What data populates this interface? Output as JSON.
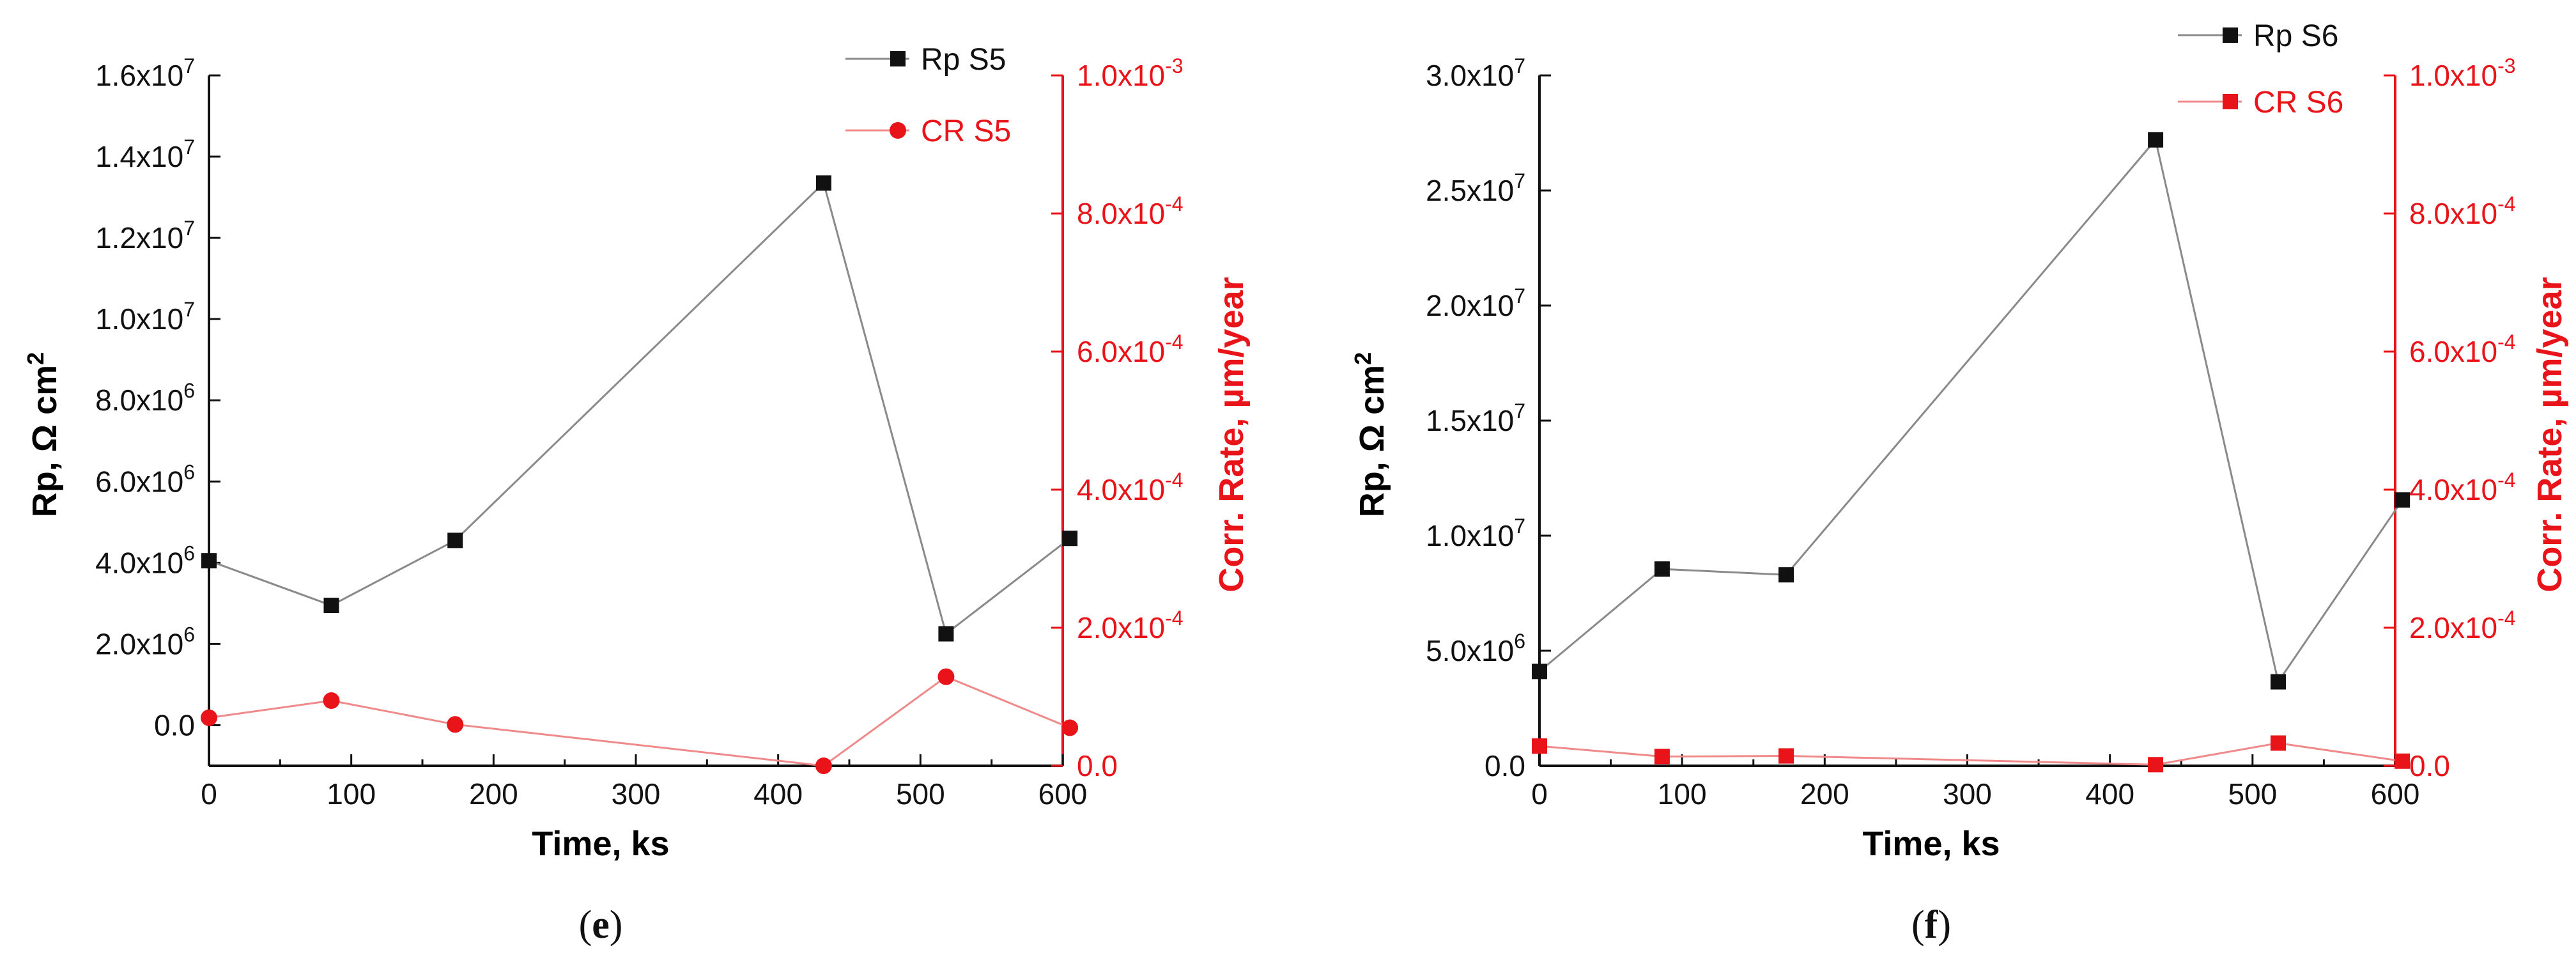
{
  "chart_data": [
    {
      "type": "line",
      "panel": "(e)",
      "panel_letter": "e",
      "xlabel": "Time, ks",
      "ylabel": "Rp, Ω cm",
      "ylabel_sup": "2",
      "y2label": "Corr. Rate, µm/year",
      "xlim": [
        0,
        600
      ],
      "xticks": [
        "0",
        "100",
        "200",
        "300",
        "400",
        "500",
        "600"
      ],
      "ylim": [
        -1000000,
        16000000
      ],
      "yticks": [
        {
          "v": 0,
          "m": "0.0",
          "e": ""
        },
        {
          "v": 2000000,
          "m": "2.0x10",
          "e": "6"
        },
        {
          "v": 4000000,
          "m": "4.0x10",
          "e": "6"
        },
        {
          "v": 6000000,
          "m": "6.0x10",
          "e": "6"
        },
        {
          "v": 8000000,
          "m": "8.0x10",
          "e": "6"
        },
        {
          "v": 10000000,
          "m": "1.0x10",
          "e": "7"
        },
        {
          "v": 12000000,
          "m": "1.2x10",
          "e": "7"
        },
        {
          "v": 14000000,
          "m": "1.4x10",
          "e": "7"
        },
        {
          "v": 16000000,
          "m": "1.6x10",
          "e": "7"
        }
      ],
      "y2lim": [
        0,
        0.001
      ],
      "y2ticks": [
        {
          "v": 0,
          "m": "0.0",
          "e": ""
        },
        {
          "v": 0.0002,
          "m": "2.0x10",
          "e": "-4"
        },
        {
          "v": 0.0004,
          "m": "4.0x10",
          "e": "-4"
        },
        {
          "v": 0.0006,
          "m": "6.0x10",
          "e": "-4"
        },
        {
          "v": 0.0008,
          "m": "8.0x10",
          "e": "-4"
        },
        {
          "v": 0.001,
          "m": "1.0x10",
          "e": "-3"
        }
      ],
      "series": [
        {
          "name": "Rp S5",
          "axis": "left",
          "color": "#111111",
          "line_color": "#8a8a8a",
          "marker": "square",
          "x": [
            0,
            86,
            173,
            432,
            518,
            605
          ],
          "y": [
            4050000,
            2950000,
            4550000,
            13350000,
            2250000,
            4600000
          ]
        },
        {
          "name": "CR S5",
          "axis": "right",
          "color": "#e8141a",
          "line_color": "#f08a8a",
          "marker": "circle",
          "x": [
            0,
            86,
            173,
            432,
            518,
            605
          ],
          "y": [
            6.96e-05,
            9.44e-05,
            5.99e-05,
            0.0,
            0.000129,
            5.51e-05
          ]
        }
      ],
      "legend_position": "top-right"
    },
    {
      "type": "line",
      "panel": "(f)",
      "panel_letter": "f",
      "xlabel": "Time, ks",
      "ylabel": "Rp, Ω cm",
      "ylabel_sup": "2",
      "y2label": "Corr. Rate, µm/year",
      "xlim": [
        0,
        600
      ],
      "xticks": [
        "0",
        "100",
        "200",
        "300",
        "400",
        "500",
        "600"
      ],
      "ylim": [
        0,
        30000000
      ],
      "yticks": [
        {
          "v": 0,
          "m": "0.0",
          "e": ""
        },
        {
          "v": 5000000,
          "m": "5.0x10",
          "e": "6"
        },
        {
          "v": 10000000,
          "m": "1.0x10",
          "e": "7"
        },
        {
          "v": 15000000,
          "m": "1.5x10",
          "e": "7"
        },
        {
          "v": 20000000,
          "m": "2.0x10",
          "e": "7"
        },
        {
          "v": 25000000,
          "m": "2.5x10",
          "e": "7"
        },
        {
          "v": 30000000,
          "m": "3.0x10",
          "e": "7"
        }
      ],
      "y2lim": [
        0,
        0.001
      ],
      "y2ticks": [
        {
          "v": 0,
          "m": "0.0",
          "e": ""
        },
        {
          "v": 0.0002,
          "m": "2.0x10",
          "e": "-4"
        },
        {
          "v": 0.0004,
          "m": "4.0x10",
          "e": "-4"
        },
        {
          "v": 0.0006,
          "m": "6.0x10",
          "e": "-4"
        },
        {
          "v": 0.0008,
          "m": "8.0x10",
          "e": "-4"
        },
        {
          "v": 0.001,
          "m": "1.0x10",
          "e": "-3"
        }
      ],
      "series": [
        {
          "name": "Rp S6",
          "axis": "left",
          "color": "#111111",
          "line_color": "#8a8a8a",
          "marker": "square",
          "x": [
            0,
            86,
            173,
            432,
            518,
            605
          ],
          "y": [
            4100000,
            8550000,
            8300000,
            27200000,
            3650000,
            11550000
          ]
        },
        {
          "name": "CR S6",
          "axis": "right",
          "color": "#e8141a",
          "line_color": "#f08a8a",
          "marker": "square",
          "x": [
            0,
            86,
            173,
            432,
            518,
            605
          ],
          "y": [
            2.86e-05,
            1.34e-05,
            1.43e-05,
            1.6e-06,
            3.29e-05,
            6.7e-06
          ]
        }
      ],
      "legend_position": "top-right"
    }
  ]
}
